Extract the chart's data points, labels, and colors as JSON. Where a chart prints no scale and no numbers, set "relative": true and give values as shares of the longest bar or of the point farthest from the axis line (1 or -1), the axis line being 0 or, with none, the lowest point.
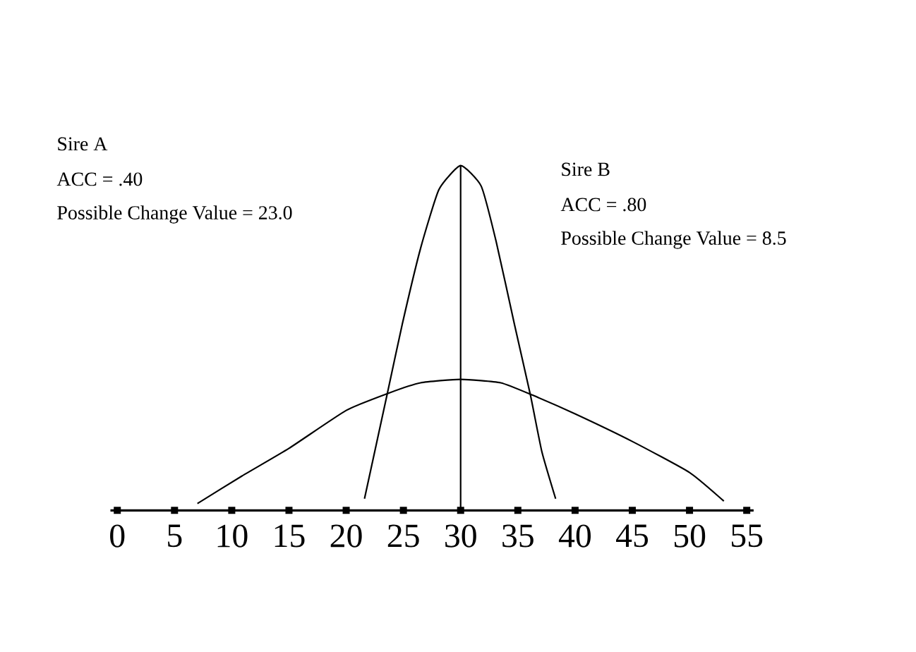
{
  "chart_data": {
    "type": "line",
    "relative": true,
    "annotations": [
      "Sire A",
      "ACC = .40",
      "Possible Change Value = 23.0",
      "Sire B",
      "ACC = .80",
      "Possible Change Value = 8.5"
    ],
    "series": [
      {
        "color": "#000000",
        "x": [
          21.6,
          23.7,
          24.9,
          26.5,
          28.1,
          30,
          31.8,
          33.1,
          34.7,
          36.1,
          37.1,
          38.3
        ],
        "values": [
          0.034,
          0.355,
          0.54,
          0.76,
          0.93,
          1.0,
          0.94,
          0.78,
          0.54,
          0.334,
          0.17,
          0.034
        ]
      },
      {
        "color": "#000000",
        "x": [
          7.0,
          10.9,
          15,
          20,
          23.7,
          26.5,
          30,
          33.5,
          36.3,
          40,
          45,
          50,
          53.0
        ],
        "values": [
          0.02,
          0.1,
          0.18,
          0.29,
          0.34,
          0.37,
          0.38,
          0.37,
          0.334,
          0.28,
          0.2,
          0.11,
          0.027
        ]
      }
    ],
    "xlim": [
      -0.6,
      55.6
    ],
    "xticks": [
      0,
      5,
      10,
      15,
      20,
      25,
      30,
      35,
      40,
      45,
      50,
      55
    ],
    "ref_lines": [
      {
        "axis": "x",
        "value": 30,
        "color": "#000000"
      }
    ],
    "grid": false,
    "marker": "none",
    "line_style": "solid",
    "tick_labels": "x"
  }
}
